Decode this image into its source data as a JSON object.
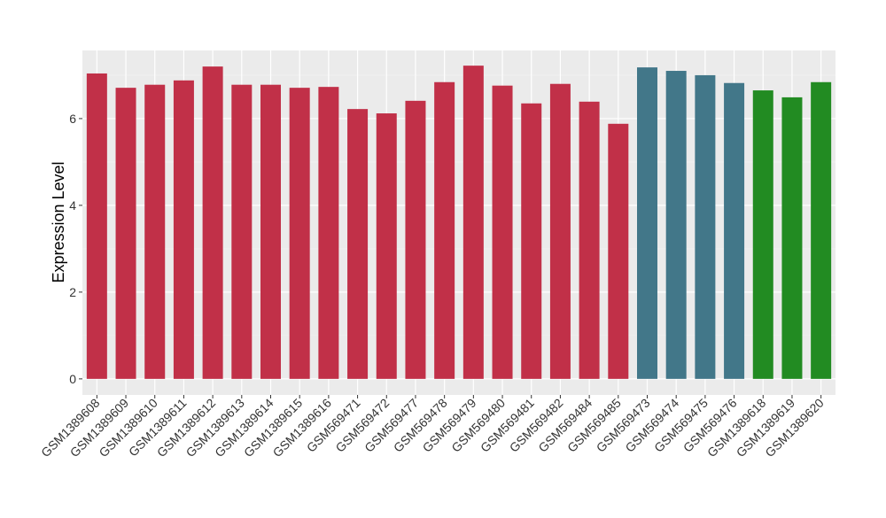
{
  "chart_data": {
    "type": "bar",
    "title": "",
    "xlabel": "",
    "ylabel": "Expression Level",
    "ylim": [
      -0.37,
      7.57
    ],
    "yticks": [
      0,
      2,
      4,
      6
    ],
    "grid": true,
    "legend": "none",
    "categories": [
      "GSM1389608",
      "GSM1389609",
      "GSM1389610",
      "GSM1389611",
      "GSM1389612",
      "GSM1389613",
      "GSM1389614",
      "GSM1389615",
      "GSM1389616",
      "GSM569471",
      "GSM569472",
      "GSM569477",
      "GSM569478",
      "GSM569479",
      "GSM569480",
      "GSM569481",
      "GSM569482",
      "GSM569484",
      "GSM569485",
      "GSM569473",
      "GSM569474",
      "GSM569475",
      "GSM569476",
      "GSM1389618",
      "GSM1389619",
      "GSM1389620"
    ],
    "values": [
      7.04,
      6.71,
      6.78,
      6.88,
      7.2,
      6.78,
      6.78,
      6.71,
      6.73,
      6.22,
      6.12,
      6.41,
      6.84,
      7.22,
      6.76,
      6.35,
      6.8,
      6.39,
      5.88,
      7.18,
      7.1,
      7.0,
      6.82,
      6.65,
      6.49,
      6.84
    ],
    "groups": [
      0,
      0,
      0,
      0,
      0,
      0,
      0,
      0,
      0,
      0,
      0,
      0,
      0,
      0,
      0,
      0,
      0,
      0,
      0,
      1,
      1,
      1,
      1,
      2,
      2,
      2
    ],
    "group_colors": [
      "#c13048",
      "#427789",
      "#228b22"
    ]
  }
}
